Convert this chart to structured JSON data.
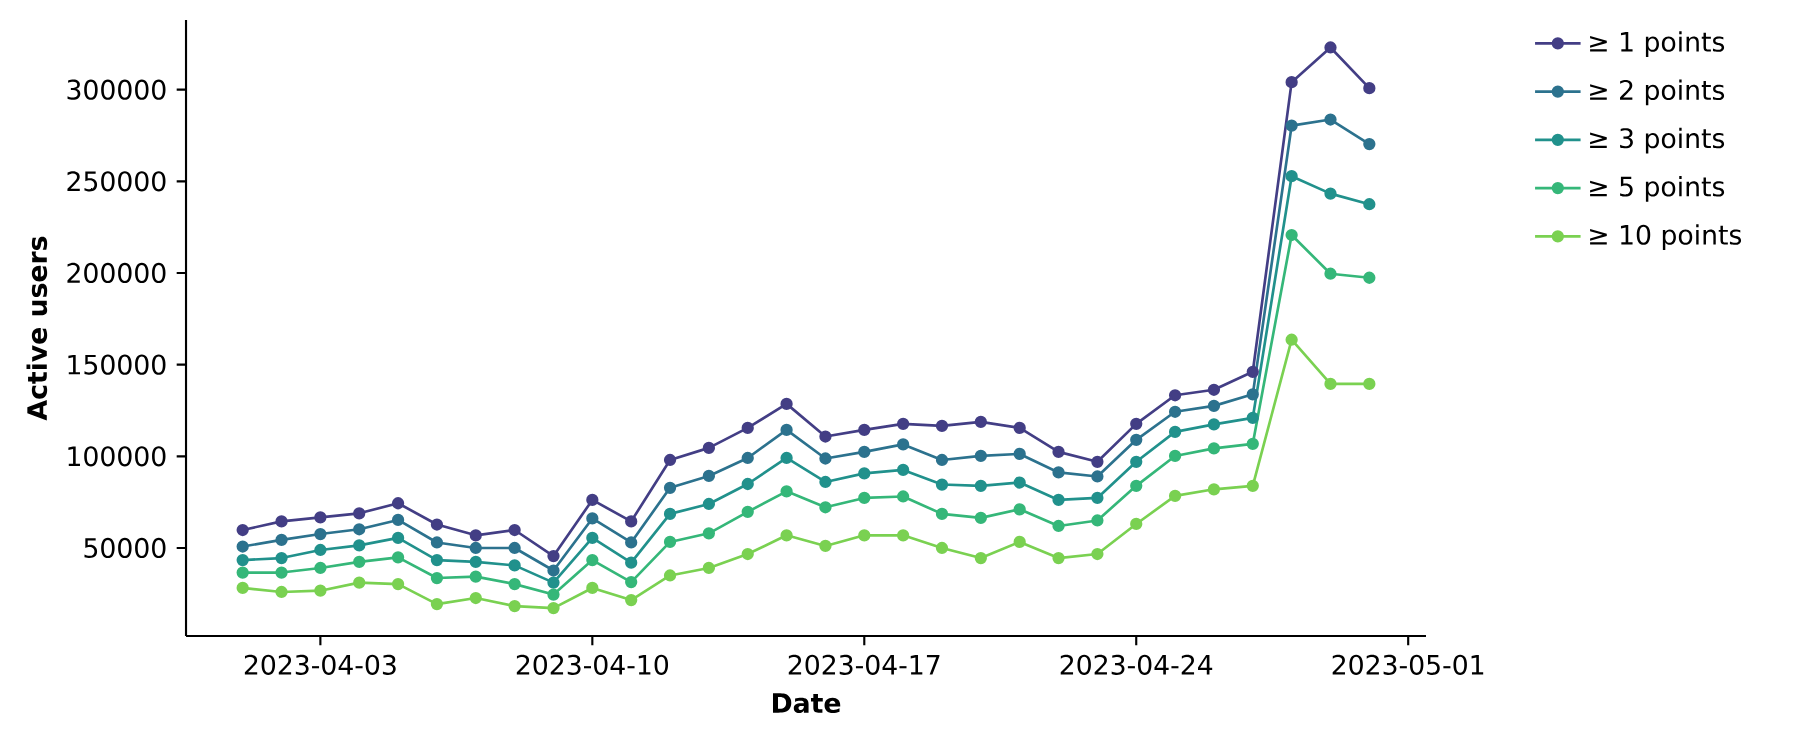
{
  "chart_data": {
    "type": "line",
    "xlabel": "Date",
    "ylabel": "Active users",
    "x": [
      "2023-04-01",
      "2023-04-02",
      "2023-04-03",
      "2023-04-04",
      "2023-04-05",
      "2023-04-06",
      "2023-04-07",
      "2023-04-08",
      "2023-04-09",
      "2023-04-10",
      "2023-04-11",
      "2023-04-12",
      "2023-04-13",
      "2023-04-14",
      "2023-04-15",
      "2023-04-16",
      "2023-04-17",
      "2023-04-18",
      "2023-04-19",
      "2023-04-20",
      "2023-04-21",
      "2023-04-22",
      "2023-04-23",
      "2023-04-24",
      "2023-04-25",
      "2023-04-26",
      "2023-04-27",
      "2023-04-28",
      "2023-04-29",
      "2023-04-30"
    ],
    "series": [
      {
        "name": "≥  1 points",
        "color": "#433e85",
        "values": [
          59800,
          64500,
          66700,
          68900,
          74400,
          62800,
          56900,
          59800,
          45600,
          76200,
          64500,
          98000,
          104600,
          115500,
          128600,
          110800,
          114400,
          117700,
          116600,
          118800,
          115500,
          102400,
          97000,
          117700,
          133300,
          136300,
          146100,
          304100,
          323000,
          300800
        ]
      },
      {
        "name": "≥  2 points",
        "color": "#2c728e",
        "values": [
          50800,
          54400,
          57600,
          60200,
          65300,
          53000,
          50000,
          50000,
          37700,
          66100,
          53000,
          82800,
          89300,
          99100,
          114400,
          98800,
          102400,
          106500,
          98000,
          100200,
          101300,
          91200,
          89000,
          109000,
          124300,
          127500,
          133800,
          280400,
          283700,
          270300
        ]
      },
      {
        "name": "≥  3 points",
        "color": "#21918c",
        "values": [
          43400,
          44500,
          48900,
          51400,
          55500,
          43400,
          42400,
          40500,
          31100,
          55500,
          42000,
          68600,
          74000,
          84900,
          99100,
          86000,
          90700,
          92600,
          84600,
          83900,
          85700,
          76200,
          77300,
          97000,
          113300,
          117400,
          121000,
          252800,
          243300,
          237500
        ]
      },
      {
        "name": "≥  5 points",
        "color": "#35b779",
        "values": [
          36600,
          36600,
          39100,
          42400,
          44900,
          33600,
          34400,
          30300,
          24600,
          43400,
          31400,
          53300,
          58000,
          69700,
          80900,
          72200,
          77300,
          78100,
          68600,
          66400,
          71100,
          62000,
          65000,
          83900,
          100200,
          104300,
          106800,
          220700,
          199600,
          197400
        ]
      },
      {
        "name": "≥  10 points",
        "color": "#7ad151",
        "values": [
          28200,
          26000,
          26700,
          31100,
          30300,
          19400,
          22700,
          18300,
          17200,
          28200,
          21600,
          35000,
          39100,
          46700,
          56900,
          51100,
          56900,
          56900,
          50000,
          44500,
          53300,
          44500,
          46700,
          63100,
          78400,
          82000,
          83900,
          163600,
          139500,
          139500
        ]
      }
    ],
    "xlim": [
      "2023-03-30T13:00",
      "2023-05-01T11:00"
    ],
    "xticks": [
      "2023-04-03",
      "2023-04-10",
      "2023-04-17",
      "2023-04-24",
      "2023-05-01"
    ],
    "ylim": [
      2000,
      338000
    ],
    "yticks": [
      50000,
      100000,
      150000,
      200000,
      250000,
      300000
    ],
    "legend": "top right",
    "marker": "circle",
    "line_style": "solid"
  }
}
